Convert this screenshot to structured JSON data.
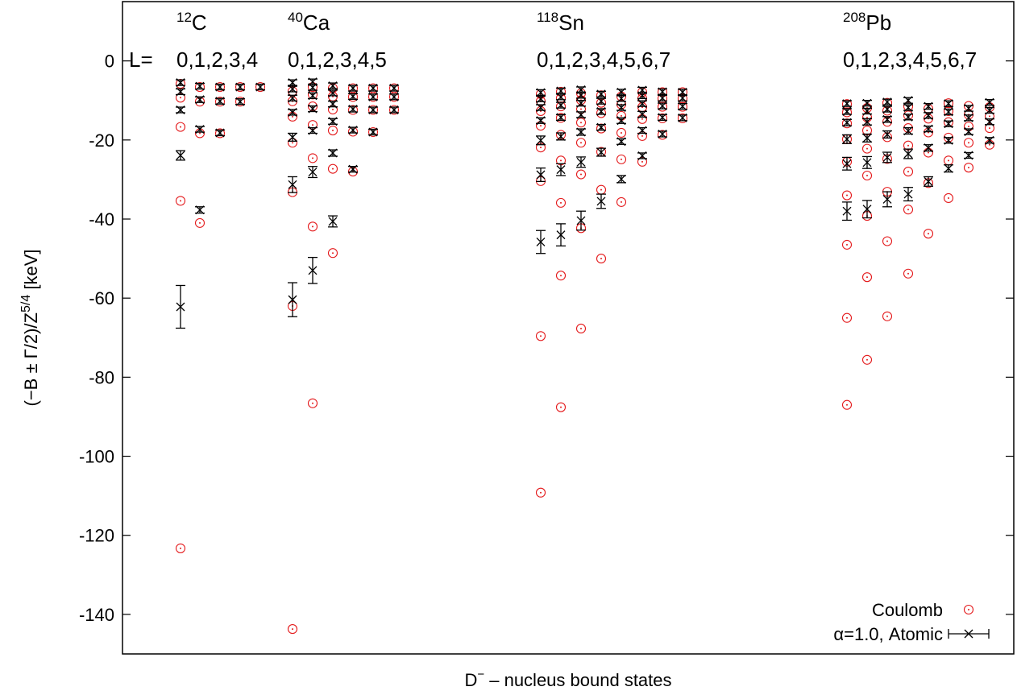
{
  "chart_data": {
    "type": "scatter",
    "xlabel": "D⁻ – nucleus bound states",
    "ylabel": "(−B ± Γ/2)/Z^5/4 [keV]",
    "ylim": [
      -150,
      15
    ],
    "yticks": [
      0,
      -20,
      -40,
      -60,
      -80,
      -100,
      -120,
      -140
    ],
    "legend": {
      "placement": "bottom-right",
      "entries": [
        "Coulomb",
        "α=1.0,  Atomic"
      ]
    },
    "l_prefix": "L=",
    "nuclei": [
      {
        "label": "12C",
        "mass": "12",
        "symbol": "C",
        "l_label": "0,1,2,3,4",
        "columns": [
          {
            "L": 0,
            "coulomb": [
              -123.3,
              -35.4,
              -16.7,
              -9.3,
              -5.8
            ],
            "atomic": [
              {
                "y": -62.2,
                "err": 5.4
              },
              {
                "y": -23.9,
                "err": 1.2
              },
              {
                "y": -12.4,
                "err": 0.5
              },
              {
                "y": -7.8,
                "err": 0.3
              },
              {
                "y": -5.5,
                "err": 0.2
              }
            ]
          },
          {
            "L": 1,
            "coulomb": [
              -41.0,
              -18.3,
              -10.3,
              -6.6
            ],
            "atomic": [
              {
                "y": -37.7,
                "err": 0.8
              },
              {
                "y": -17.3,
                "err": 0.5
              },
              {
                "y": -9.8,
                "err": 0.3
              },
              {
                "y": -6.4,
                "err": 0.2
              }
            ]
          },
          {
            "L": 2,
            "coulomb": [
              -18.3,
              -10.3,
              -6.6
            ],
            "atomic": [
              {
                "y": -18.2,
                "err": 0.4
              },
              {
                "y": -10.2,
                "err": 0.2
              },
              {
                "y": -6.6,
                "err": 0.2
              }
            ]
          },
          {
            "L": 3,
            "coulomb": [
              -10.3,
              -6.6
            ],
            "atomic": [
              {
                "y": -10.3,
                "err": 0.2
              },
              {
                "y": -6.6,
                "err": 0.2
              }
            ]
          },
          {
            "L": 4,
            "coulomb": [
              -6.6
            ],
            "atomic": [
              {
                "y": -6.6,
                "err": 0.2
              }
            ]
          }
        ]
      },
      {
        "label": "40Ca",
        "mass": "40",
        "symbol": "Ca",
        "l_label": "0,1,2,3,4,5",
        "columns": [
          {
            "L": 0,
            "coulomb": [
              -143.7,
              -62.0,
              -33.2,
              -20.7,
              -14.1,
              -10.2,
              -7.7
            ],
            "atomic": [
              {
                "y": -60.4,
                "err": 4.3
              },
              {
                "y": -31.3,
                "err": 2.0
              },
              {
                "y": -19.3,
                "err": 1.0
              },
              {
                "y": -13.0,
                "err": 0.6
              },
              {
                "y": -9.4,
                "err": 0.4
              },
              {
                "y": -7.1,
                "err": 0.3
              },
              {
                "y": -5.5,
                "err": 0.2
              }
            ]
          },
          {
            "L": 1,
            "coulomb": [
              -86.6,
              -41.9,
              -24.6,
              -16.2,
              -11.5,
              -8.5,
              -6.6
            ],
            "atomic": [
              {
                "y": -53.0,
                "err": 3.3
              },
              {
                "y": -28.1,
                "err": 1.4
              },
              {
                "y": -17.6,
                "err": 0.7
              },
              {
                "y": -12.1,
                "err": 0.4
              },
              {
                "y": -8.8,
                "err": 0.3
              },
              {
                "y": -6.7,
                "err": 0.2
              },
              {
                "y": -5.3,
                "err": 0.2
              }
            ]
          },
          {
            "L": 2,
            "coulomb": [
              -48.6,
              -27.3,
              -17.6,
              -12.3,
              -9.0,
              -6.9
            ],
            "atomic": [
              {
                "y": -40.6,
                "err": 1.4
              },
              {
                "y": -23.3,
                "err": 0.8
              },
              {
                "y": -15.3,
                "err": 0.5
              },
              {
                "y": -10.9,
                "err": 0.3
              },
              {
                "y": -8.1,
                "err": 0.2
              },
              {
                "y": -6.3,
                "err": 0.2
              }
            ]
          },
          {
            "L": 3,
            "coulomb": [
              -28.0,
              -17.9,
              -12.4,
              -9.1,
              -6.9
            ],
            "atomic": [
              {
                "y": -27.4,
                "err": 0.6
              },
              {
                "y": -17.5,
                "err": 0.4
              },
              {
                "y": -12.2,
                "err": 0.3
              },
              {
                "y": -9.0,
                "err": 0.2
              },
              {
                "y": -6.9,
                "err": 0.2
              }
            ]
          },
          {
            "L": 4,
            "coulomb": [
              -18.0,
              -12.4,
              -9.1,
              -6.9
            ],
            "atomic": [
              {
                "y": -18.0,
                "err": 0.3
              },
              {
                "y": -12.4,
                "err": 0.2
              },
              {
                "y": -9.1,
                "err": 0.2
              },
              {
                "y": -6.9,
                "err": 0.2
              }
            ]
          },
          {
            "L": 5,
            "coulomb": [
              -12.4,
              -9.1,
              -6.9
            ],
            "atomic": [
              {
                "y": -12.4,
                "err": 0.2
              },
              {
                "y": -9.1,
                "err": 0.2
              },
              {
                "y": -6.9,
                "err": 0.2
              }
            ]
          }
        ]
      },
      {
        "label": "118Sn",
        "mass": "118",
        "symbol": "Sn",
        "l_label": "0,1,2,3,4,5,6,7",
        "columns": [
          {
            "L": 0,
            "coulomb": [
              -109.2,
              -69.6,
              -30.4,
              -21.9,
              -16.4,
              -12.7,
              -10.2,
              -8.4
            ],
            "atomic": [
              {
                "y": -45.8,
                "err": 2.9
              },
              {
                "y": -28.8,
                "err": 1.7
              },
              {
                "y": -20.1,
                "err": 1.1
              },
              {
                "y": -15.1,
                "err": 0.7
              },
              {
                "y": -11.8,
                "err": 0.5
              },
              {
                "y": -9.6,
                "err": 0.4
              },
              {
                "y": -8.0,
                "err": 0.3
              }
            ]
          },
          {
            "L": 1,
            "coulomb": [
              -87.6,
              -54.3,
              -35.9,
              -25.2,
              -18.7,
              -14.4,
              -11.5,
              -9.4,
              -7.8
            ],
            "atomic": [
              {
                "y": -44.0,
                "err": 2.8
              },
              {
                "y": -27.5,
                "err": 1.5
              },
              {
                "y": -19.1,
                "err": 0.9
              },
              {
                "y": -14.3,
                "err": 0.6
              },
              {
                "y": -11.2,
                "err": 0.4
              },
              {
                "y": -9.1,
                "err": 0.3
              },
              {
                "y": -7.6,
                "err": 0.2
              }
            ]
          },
          {
            "L": 2,
            "coulomb": [
              -67.7,
              -42.3,
              -28.7,
              -20.7,
              -15.6,
              -12.2,
              -9.9,
              -8.2
            ],
            "atomic": [
              {
                "y": -40.4,
                "err": 2.4
              },
              {
                "y": -25.6,
                "err": 1.3
              },
              {
                "y": -18.0,
                "err": 0.8
              },
              {
                "y": -13.6,
                "err": 0.5
              },
              {
                "y": -10.7,
                "err": 0.4
              },
              {
                "y": -8.7,
                "err": 0.3
              },
              {
                "y": -7.3,
                "err": 0.2
              }
            ]
          },
          {
            "L": 3,
            "coulomb": [
              -50.0,
              -32.6,
              -23.0,
              -17.1,
              -13.2,
              -10.6,
              -8.7
            ],
            "atomic": [
              {
                "y": -35.5,
                "err": 1.8
              },
              {
                "y": -23.1,
                "err": 1.0
              },
              {
                "y": -16.8,
                "err": 0.6
              },
              {
                "y": -12.8,
                "err": 0.4
              },
              {
                "y": -10.2,
                "err": 0.3
              },
              {
                "y": -8.4,
                "err": 0.2
              }
            ]
          },
          {
            "L": 4,
            "coulomb": [
              -35.7,
              -24.9,
              -18.2,
              -13.9,
              -11.0,
              -9.0
            ],
            "atomic": [
              {
                "y": -29.9,
                "err": 0.9
              },
              {
                "y": -20.4,
                "err": 0.6
              },
              {
                "y": -15.1,
                "err": 0.4
              },
              {
                "y": -11.8,
                "err": 0.3
              },
              {
                "y": -9.5,
                "err": 0.2
              },
              {
                "y": -7.9,
                "err": 0.2
              }
            ]
          },
          {
            "L": 5,
            "coulomb": [
              -25.5,
              -19.0,
              -14.7,
              -11.7,
              -9.5,
              -7.9
            ],
            "atomic": [
              {
                "y": -24.0,
                "err": 0.6
              },
              {
                "y": -17.6,
                "err": 0.4
              },
              {
                "y": -13.5,
                "err": 0.3
              },
              {
                "y": -10.8,
                "err": 0.2
              },
              {
                "y": -8.8,
                "err": 0.2
              },
              {
                "y": -7.4,
                "err": 0.2
              }
            ]
          },
          {
            "L": 6,
            "coulomb": [
              -18.7,
              -14.5,
              -11.6,
              -9.5,
              -7.9
            ],
            "atomic": [
              {
                "y": -18.5,
                "err": 0.3
              },
              {
                "y": -14.3,
                "err": 0.2
              },
              {
                "y": -11.4,
                "err": 0.2
              },
              {
                "y": -9.4,
                "err": 0.2
              },
              {
                "y": -7.8,
                "err": 0.2
              }
            ]
          },
          {
            "L": 7,
            "coulomb": [
              -14.5,
              -11.6,
              -9.5,
              -7.9
            ],
            "atomic": [
              {
                "y": -14.4,
                "err": 0.2
              },
              {
                "y": -11.5,
                "err": 0.2
              },
              {
                "y": -9.4,
                "err": 0.2
              },
              {
                "y": -7.9,
                "err": 0.2
              }
            ]
          }
        ]
      },
      {
        "label": "208Pb",
        "mass": "208",
        "symbol": "Pb",
        "l_label": "0,1,2,3,4,5,6,7",
        "columns": [
          {
            "L": 0,
            "coulomb": [
              -87.0,
              -65.0,
              -46.5,
              -34.0,
              -25.5,
              -19.8,
              -15.8,
              -13.0,
              -10.9
            ],
            "atomic": [
              {
                "y": -38.0,
                "err": 2.3
              },
              {
                "y": -26.0,
                "err": 1.6
              },
              {
                "y": -19.8,
                "err": 1.1
              },
              {
                "y": -15.6,
                "err": 0.8
              },
              {
                "y": -12.8,
                "err": 0.6
              },
              {
                "y": -10.8,
                "err": 0.5
              }
            ]
          },
          {
            "L": 1,
            "coulomb": [
              -75.6,
              -54.7,
              -39.2,
              -29.0,
              -22.2,
              -17.6,
              -14.3,
              -11.9
            ],
            "atomic": [
              {
                "y": -37.5,
                "err": 2.2
              },
              {
                "y": -25.7,
                "err": 1.5
              },
              {
                "y": -19.5,
                "err": 1.0
              },
              {
                "y": -15.4,
                "err": 0.8
              },
              {
                "y": -12.7,
                "err": 0.6
              },
              {
                "y": -10.7,
                "err": 0.5
              }
            ]
          },
          {
            "L": 2,
            "coulomb": [
              -64.6,
              -45.6,
              -33.1,
              -24.8,
              -19.3,
              -15.4,
              -12.6,
              -10.6
            ],
            "atomic": [
              {
                "y": -35.0,
                "err": 1.9
              },
              {
                "y": -24.4,
                "err": 1.3
              },
              {
                "y": -18.6,
                "err": 0.9
              },
              {
                "y": -14.8,
                "err": 0.7
              },
              {
                "y": -12.2,
                "err": 0.5
              },
              {
                "y": -10.4,
                "err": 0.4
              }
            ]
          },
          {
            "L": 3,
            "coulomb": [
              -53.8,
              -37.6,
              -28.0,
              -21.4,
              -17.0,
              -13.8,
              -11.5
            ],
            "atomic": [
              {
                "y": -33.7,
                "err": 1.7
              },
              {
                "y": -23.5,
                "err": 1.2
              },
              {
                "y": -17.7,
                "err": 0.8
              },
              {
                "y": -14.2,
                "err": 0.6
              },
              {
                "y": -11.8,
                "err": 0.4
              },
              {
                "y": -10.0,
                "err": 0.3
              }
            ]
          },
          {
            "L": 4,
            "coulomb": [
              -43.7,
              -30.9,
              -23.2,
              -18.1,
              -14.6,
              -12.1
            ],
            "atomic": [
              {
                "y": -30.5,
                "err": 1.2
              },
              {
                "y": -22.0,
                "err": 0.8
              },
              {
                "y": -17.2,
                "err": 0.6
              },
              {
                "y": -13.8,
                "err": 0.4
              },
              {
                "y": -11.5,
                "err": 0.3
              }
            ]
          },
          {
            "L": 5,
            "coulomb": [
              -34.7,
              -25.2,
              -19.4,
              -15.5,
              -12.7,
              -10.7
            ],
            "atomic": [
              {
                "y": -27.2,
                "err": 0.9
              },
              {
                "y": -20.1,
                "err": 0.6
              },
              {
                "y": -15.9,
                "err": 0.4
              },
              {
                "y": -12.9,
                "err": 0.3
              },
              {
                "y": -10.8,
                "err": 0.3
              }
            ]
          },
          {
            "L": 6,
            "coulomb": [
              -27.0,
              -20.7,
              -16.6,
              -13.6,
              -11.4
            ],
            "atomic": [
              {
                "y": -23.9,
                "err": 0.5
              },
              {
                "y": -17.9,
                "err": 0.4
              },
              {
                "y": -14.4,
                "err": 0.3
              },
              {
                "y": -12.0,
                "err": 0.2
              }
            ]
          },
          {
            "L": 7,
            "coulomb": [
              -21.2,
              -17.0,
              -14.0,
              -11.7
            ],
            "atomic": [
              {
                "y": -20.1,
                "err": 0.3
              },
              {
                "y": -15.4,
                "err": 0.3
              },
              {
                "y": -12.5,
                "err": 0.2
              },
              {
                "y": -10.5,
                "err": 0.2
              }
            ]
          }
        ]
      }
    ],
    "colors": {
      "coulomb": "#e41a1c",
      "atomic": "#000000",
      "axis": "#000000"
    }
  }
}
